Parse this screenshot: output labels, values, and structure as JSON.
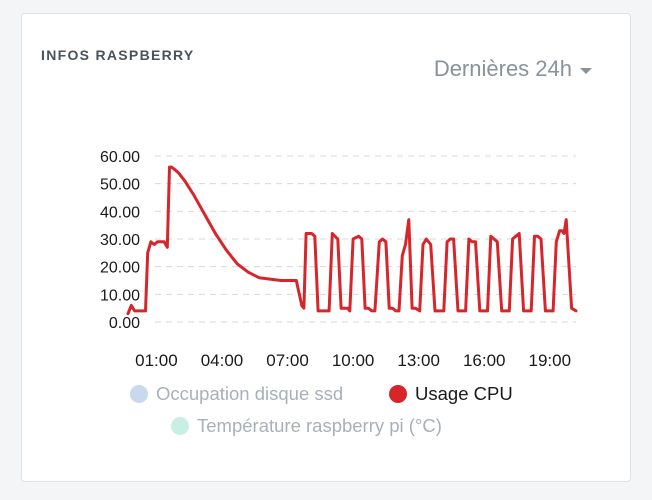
{
  "card": {
    "title": "INFOS RASPBERRY",
    "range_label": "Dernières 24h"
  },
  "legend": [
    {
      "label": "Occupation disque ssd",
      "color": "#c9d8ec",
      "text_color": "#a9b0b8",
      "hidden": true
    },
    {
      "label": "Usage CPU",
      "color": "#d7262b",
      "text_color": "#1a1a1a",
      "hidden": false
    },
    {
      "label": "Température raspberry pi (°C)",
      "color": "#c9efe5",
      "text_color": "#a9b0b8",
      "hidden": true
    }
  ],
  "chart_data": {
    "type": "line",
    "title": "",
    "xlabel": "",
    "ylabel": "",
    "ylim": [
      0,
      60
    ],
    "xlim": [
      -0.3,
      20.2
    ],
    "grid": true,
    "y_ticks": [
      "0.00",
      "10.00",
      "20.00",
      "30.00",
      "40.00",
      "50.00",
      "60.00"
    ],
    "x_ticks": [
      {
        "at": 1,
        "label": "01:00"
      },
      {
        "at": 4,
        "label": "04:00"
      },
      {
        "at": 7,
        "label": "07:00"
      },
      {
        "at": 10,
        "label": "10:00"
      },
      {
        "at": 13,
        "label": "13:00"
      },
      {
        "at": 16,
        "label": "16:00"
      },
      {
        "at": 19,
        "label": "19:00"
      }
    ],
    "series": [
      {
        "name": "Usage CPU",
        "color": "#d7262b",
        "x": [
          -0.3,
          -0.15,
          0.0,
          0.1,
          0.35,
          0.5,
          0.6,
          0.75,
          0.9,
          1.05,
          1.2,
          1.35,
          1.5,
          1.6,
          1.7,
          1.85,
          2.0,
          2.3,
          2.7,
          3.2,
          3.7,
          4.2,
          4.7,
          5.2,
          5.7,
          6.2,
          6.7,
          7.1,
          7.4,
          7.6,
          7.65,
          7.75,
          7.85,
          8.1,
          8.25,
          8.4,
          8.75,
          8.9,
          9.05,
          9.3,
          9.45,
          9.6,
          9.75,
          9.85,
          10.0,
          10.25,
          10.4,
          10.55,
          10.7,
          10.85,
          11.0,
          11.2,
          11.35,
          11.5,
          11.65,
          11.8,
          11.95,
          12.1,
          12.25,
          12.4,
          12.55,
          12.7,
          12.85,
          13.05,
          13.2,
          13.35,
          13.55,
          13.75,
          14.0,
          14.15,
          14.3,
          14.45,
          14.6,
          14.8,
          15.0,
          15.15,
          15.3,
          15.45,
          15.6,
          15.8,
          16.0,
          16.15,
          16.3,
          16.45,
          16.6,
          16.8,
          17.0,
          17.15,
          17.3,
          17.45,
          17.6,
          17.8,
          18.0,
          18.15,
          18.3,
          18.45,
          18.6,
          18.8,
          19.0,
          19.15,
          19.3,
          19.45,
          19.55,
          19.65,
          19.75,
          20.0,
          20.2
        ],
        "values": [
          3,
          6,
          4,
          4,
          4,
          4,
          25,
          29,
          28,
          29,
          29,
          29,
          27,
          56,
          56,
          55,
          54,
          51,
          46,
          39,
          32,
          26,
          21,
          18,
          16,
          15.5,
          15,
          15,
          15,
          8,
          6,
          5,
          32,
          32,
          31,
          4,
          4,
          4,
          32,
          30,
          5,
          5,
          5,
          4,
          30,
          31,
          30,
          5,
          5,
          4,
          4,
          29,
          30,
          29,
          5,
          5,
          4,
          4,
          24,
          28,
          37,
          5,
          5,
          4,
          28,
          30,
          28,
          4,
          4,
          4,
          29,
          30,
          30,
          4,
          4,
          4,
          30,
          29,
          29,
          4,
          4,
          4,
          31,
          30,
          29,
          4,
          4,
          4,
          30,
          31,
          32,
          4,
          4,
          4,
          31,
          31,
          30,
          4,
          4,
          4,
          29,
          33,
          33,
          32,
          37,
          5,
          4
        ]
      }
    ]
  }
}
